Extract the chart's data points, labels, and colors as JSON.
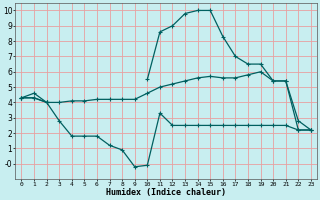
{
  "xlabel": "Humidex (Indice chaleur)",
  "xlim": [
    -0.5,
    23.5
  ],
  "ylim": [
    -1.0,
    10.5
  ],
  "background_color": "#c8eef0",
  "grid_color": "#e8a0a0",
  "line_color": "#006060",
  "x_all": [
    0,
    1,
    2,
    3,
    4,
    5,
    6,
    7,
    8,
    9,
    10,
    11,
    12,
    13,
    14,
    15,
    16,
    17,
    18,
    19,
    20,
    21,
    22,
    23
  ],
  "line_max": [
    4.3,
    4.6,
    4.0,
    4.1,
    4.2,
    4.2,
    4.2,
    4.2,
    4.2,
    4.2,
    5.5,
    8.6,
    9.0,
    9.8,
    10.0,
    10.0,
    8.3,
    7.0,
    6.5,
    6.5,
    5.4,
    5.4,
    2.8,
    2.2
  ],
  "line_avg": [
    4.3,
    4.3,
    4.0,
    4.0,
    4.1,
    4.1,
    4.2,
    4.2,
    4.2,
    4.2,
    4.6,
    5.0,
    5.2,
    5.4,
    5.6,
    5.7,
    5.6,
    5.6,
    5.8,
    6.0,
    5.4,
    5.4,
    2.2,
    2.2
  ],
  "line_min": [
    4.3,
    4.3,
    4.0,
    2.8,
    1.8,
    1.8,
    1.8,
    1.2,
    0.9,
    -0.2,
    -0.1,
    3.3,
    2.5,
    2.5,
    2.5,
    2.5,
    2.5,
    2.5,
    2.5,
    2.5,
    2.5,
    2.5,
    2.2,
    2.2
  ],
  "xtick_labels": [
    "0",
    "1",
    "2",
    "3",
    "4",
    "5",
    "6",
    "7",
    "8",
    "9",
    "10",
    "11",
    "12",
    "13",
    "14",
    "15",
    "16",
    "17",
    "18",
    "19",
    "20",
    "21",
    "22",
    "23"
  ],
  "ytick_vals": [
    0,
    1,
    2,
    3,
    4,
    5,
    6,
    7,
    8,
    9,
    10
  ],
  "ytick_labels": [
    "-0",
    "1",
    "2",
    "3",
    "4",
    "5",
    "6",
    "7",
    "8",
    "9",
    "10"
  ]
}
